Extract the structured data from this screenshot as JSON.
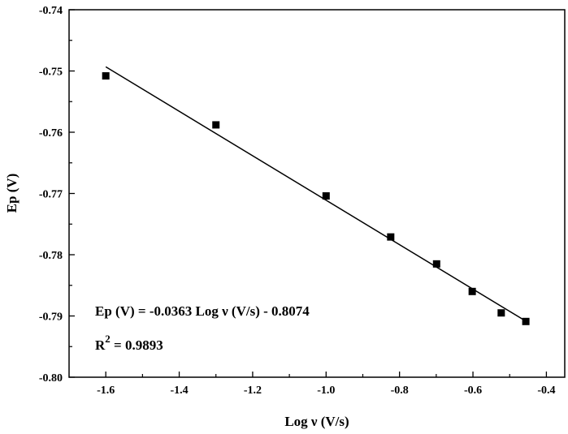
{
  "chart_data": {
    "type": "scatter",
    "xlabel": "Log ν (V/s)",
    "ylabel": "Ep (V)",
    "xlim": [
      -1.7,
      -0.35
    ],
    "ylim": [
      -0.8,
      -0.74
    ],
    "xticks": [
      -1.6,
      -1.4,
      -1.2,
      -1.0,
      -0.8,
      -0.6,
      -0.4
    ],
    "xtick_labels": [
      "-1.6",
      "-1.4",
      "-1.2",
      "-1.0",
      "-0.8",
      "-0.6",
      "-0.4"
    ],
    "yticks": [
      -0.74,
      -0.75,
      -0.76,
      -0.77,
      -0.78,
      -0.79,
      -0.8
    ],
    "ytick_labels": [
      "-0.74",
      "-0.75",
      "-0.76",
      "-0.77",
      "-0.78",
      "-0.79",
      "-0.80"
    ],
    "grid": false,
    "series": [
      {
        "marker": "square",
        "color": "#000000",
        "x": [
          -1.6,
          -1.3,
          -1.0,
          -0.824,
          -0.699,
          -0.602,
          -0.523,
          -0.456
        ],
        "y": [
          -0.7508,
          -0.7588,
          -0.7704,
          -0.7771,
          -0.7815,
          -0.786,
          -0.7895,
          -0.7909
        ]
      }
    ],
    "fit_line": {
      "slope": -0.0363,
      "intercept": -0.8074,
      "x_range": [
        -1.6,
        -0.456
      ],
      "color": "#000000"
    },
    "annotations": {
      "equation": "Ep (V) = -0.0363 Log ν (V/s) - 0.8074",
      "r2_prefix": "R",
      "r2_sup": "2",
      "r2_value": " = 0.9893"
    }
  }
}
